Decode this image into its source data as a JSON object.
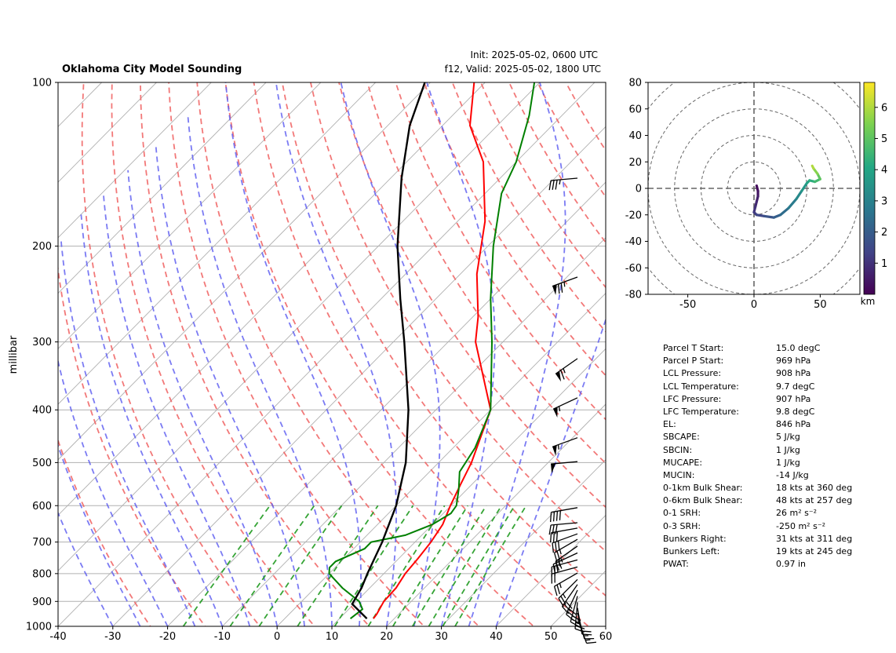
{
  "header": {
    "title": "Oklahoma City Model Sounding",
    "init": "Init: 2025-05-02, 0600 UTC",
    "valid": "f12, Valid: 2025-05-02, 1800 UTC"
  },
  "chart_data": [
    {
      "type": "line",
      "subtype": "skew-t log-p",
      "title": "Oklahoma City Model Sounding",
      "xlabel": "",
      "ylabel": "millibar",
      "xlim": [
        -40,
        60
      ],
      "ylim": [
        1000,
        100
      ],
      "y_scale": "log",
      "x_ticks": [
        -40,
        -30,
        -20,
        -10,
        0,
        10,
        20,
        30,
        40,
        50,
        60
      ],
      "y_ticks": [
        1000,
        900,
        800,
        700,
        600,
        500,
        400,
        300,
        200,
        100
      ],
      "grid": true,
      "series": [
        {
          "role": "temperature",
          "color": "#ff0000",
          "points": [
            [
              968,
              16.2
            ],
            [
              950,
              16.0
            ],
            [
              900,
              15.0
            ],
            [
              850,
              14.8
            ],
            [
              800,
              13.9
            ],
            [
              750,
              13.5
            ],
            [
              700,
              12.9
            ],
            [
              650,
              11.9
            ],
            [
              600,
              9.9
            ],
            [
              550,
              8.0
            ],
            [
              500,
              6.0
            ],
            [
              400,
              0.0
            ],
            [
              300,
              -15.0
            ],
            [
              270,
              -19.0
            ],
            [
              225,
              -27.0
            ],
            [
              180,
              -35.0
            ],
            [
              140,
              -46.0
            ],
            [
              120,
              -55.0
            ],
            [
              100,
              -62.0
            ]
          ]
        },
        {
          "role": "dewpoint",
          "color": "#008000",
          "points": [
            [
              968,
              12.0
            ],
            [
              930,
              12.5
            ],
            [
              900,
              10.5
            ],
            [
              850,
              5.0
            ],
            [
              800,
              0.0
            ],
            [
              780,
              -1.0
            ],
            [
              760,
              -1.0
            ],
            [
              720,
              2.0
            ],
            [
              700,
              2.0
            ],
            [
              680,
              7.0
            ],
            [
              650,
              10.0
            ],
            [
              620,
              11.4
            ],
            [
              600,
              11.0
            ],
            [
              560,
              8.5
            ],
            [
              520,
              5.5
            ],
            [
              470,
              4.0
            ],
            [
              400,
              0.0
            ],
            [
              300,
              -12.0
            ],
            [
              250,
              -20.0
            ],
            [
              200,
              -29.0
            ],
            [
              160,
              -37.0
            ],
            [
              140,
              -40.0
            ],
            [
              115,
              -46.0
            ],
            [
              100,
              -51.0
            ]
          ]
        },
        {
          "role": "parcel",
          "color": "#000000",
          "points": [
            [
              968,
              15.0
            ],
            [
              910,
              9.7
            ],
            [
              850,
              8.5
            ],
            [
              800,
              7.0
            ],
            [
              700,
              4.0
            ],
            [
              600,
              0.0
            ],
            [
              500,
              -6.0
            ],
            [
              400,
              -15.0
            ],
            [
              300,
              -28.0
            ],
            [
              250,
              -36.5
            ],
            [
              200,
              -46.5
            ],
            [
              150,
              -58.0
            ],
            [
              120,
              -66.0
            ],
            [
              100,
              -71.0
            ]
          ]
        }
      ],
      "background_lines": {
        "dry_adiabats_K": [
          250,
          260,
          270,
          280,
          290,
          300,
          310,
          320,
          330,
          340,
          350,
          360,
          370,
          380,
          390,
          400,
          410,
          420,
          430,
          440
        ],
        "moist_adiabats_start_C": [
          -30,
          -25,
          -20,
          -15,
          -10,
          -5,
          0,
          5,
          10,
          15,
          20,
          25,
          30,
          35,
          40
        ],
        "mixing_ratios_gkg": [
          1,
          2,
          3,
          5,
          8,
          12,
          16,
          20,
          24,
          28,
          32
        ]
      },
      "wind_barbs": [
        {
          "p": 966,
          "speed_kt": 15,
          "dir_deg": 160
        },
        {
          "p": 945,
          "speed_kt": 17,
          "dir_deg": 165
        },
        {
          "p": 925,
          "speed_kt": 20,
          "dir_deg": 170
        },
        {
          "p": 903,
          "speed_kt": 25,
          "dir_deg": 185
        },
        {
          "p": 880,
          "speed_kt": 28,
          "dir_deg": 195
        },
        {
          "p": 858,
          "speed_kt": 30,
          "dir_deg": 205
        },
        {
          "p": 838,
          "speed_kt": 30,
          "dir_deg": 215
        },
        {
          "p": 820,
          "speed_kt": 27,
          "dir_deg": 225
        },
        {
          "p": 798,
          "speed_kt": 25,
          "dir_deg": 240
        },
        {
          "p": 778,
          "speed_kt": 22,
          "dir_deg": 255
        },
        {
          "p": 755,
          "speed_kt": 22,
          "dir_deg": 255
        },
        {
          "p": 733,
          "speed_kt": 25,
          "dir_deg": 245
        },
        {
          "p": 712,
          "speed_kt": 25,
          "dir_deg": 235
        },
        {
          "p": 692,
          "speed_kt": 27,
          "dir_deg": 240
        },
        {
          "p": 676,
          "speed_kt": 30,
          "dir_deg": 250
        },
        {
          "p": 660,
          "speed_kt": 30,
          "dir_deg": 260
        },
        {
          "p": 645,
          "speed_kt": 30,
          "dir_deg": 265
        },
        {
          "p": 605,
          "speed_kt": 40,
          "dir_deg": 260
        },
        {
          "p": 498,
          "speed_kt": 50,
          "dir_deg": 265
        },
        {
          "p": 450,
          "speed_kt": 55,
          "dir_deg": 250
        },
        {
          "p": 380,
          "speed_kt": 55,
          "dir_deg": 245
        },
        {
          "p": 322,
          "speed_kt": 65,
          "dir_deg": 235
        },
        {
          "p": 228,
          "speed_kt": 75,
          "dir_deg": 250
        },
        {
          "p": 150,
          "speed_kt": 35,
          "dir_deg": 265
        }
      ]
    },
    {
      "type": "line",
      "subtype": "hodograph",
      "xlim": [
        -80,
        80
      ],
      "ylim": [
        -80,
        80
      ],
      "x_ticks": [
        -50,
        0,
        50
      ],
      "y_ticks": [
        -80,
        -60,
        -40,
        -20,
        0,
        20,
        40,
        60,
        80
      ],
      "rings": [
        20,
        40,
        60,
        80,
        100
      ],
      "colorbar": {
        "label": "km",
        "ticks": [
          1,
          2,
          3,
          4,
          5,
          6
        ],
        "range": [
          0,
          6.8
        ],
        "colormap": [
          "#440154",
          "#414487",
          "#2a788e",
          "#22a884",
          "#7ad151",
          "#fde725"
        ]
      },
      "points": [
        {
          "u": 2,
          "v": 2,
          "h": 0.1
        },
        {
          "u": 3,
          "v": -2,
          "h": 0.3
        },
        {
          "u": 3,
          "v": -6,
          "h": 0.5
        },
        {
          "u": 2,
          "v": -10,
          "h": 0.7
        },
        {
          "u": 1,
          "v": -14,
          "h": 0.9
        },
        {
          "u": 0,
          "v": -18,
          "h": 1.1
        },
        {
          "u": 2,
          "v": -20,
          "h": 1.3
        },
        {
          "u": 8,
          "v": -21,
          "h": 1.6
        },
        {
          "u": 15,
          "v": -22,
          "h": 1.9
        },
        {
          "u": 20,
          "v": -20,
          "h": 2.2
        },
        {
          "u": 26,
          "v": -15,
          "h": 2.6
        },
        {
          "u": 32,
          "v": -8,
          "h": 3.0
        },
        {
          "u": 36,
          "v": -2,
          "h": 3.4
        },
        {
          "u": 40,
          "v": 4,
          "h": 3.8
        },
        {
          "u": 42,
          "v": 6,
          "h": 4.1
        },
        {
          "u": 46,
          "v": 5,
          "h": 4.4
        },
        {
          "u": 50,
          "v": 7,
          "h": 4.8
        },
        {
          "u": 48,
          "v": 11,
          "h": 5.3
        },
        {
          "u": 45,
          "v": 15,
          "h": 5.8
        },
        {
          "u": 44,
          "v": 17,
          "h": 6.2
        }
      ]
    }
  ],
  "parameters": [
    {
      "label": "Parcel T Start:",
      "value": "15.0 degC"
    },
    {
      "label": "Parcel P Start:",
      "value": "969 hPa"
    },
    {
      "label": "LCL Pressure:",
      "value": "908 hPa"
    },
    {
      "label": "LCL Temperature:",
      "value": "9.7 degC"
    },
    {
      "label": "LFC Pressure:",
      "value": "907 hPa"
    },
    {
      "label": "LFC Temperature:",
      "value": "9.8 degC"
    },
    {
      "label": "EL:",
      "value": "846 hPa"
    },
    {
      "label": "SBCAPE:",
      "value": "5 J/kg"
    },
    {
      "label": "SBCIN:",
      "value": "1 J/kg"
    },
    {
      "label": "MUCAPE:",
      "value": "1 J/kg"
    },
    {
      "label": "MUCIN:",
      "value": "-14 J/kg"
    },
    {
      "label": "0-1km Bulk Shear:",
      "value": "18 kts at 360 deg"
    },
    {
      "label": "0-6km Bulk Shear:",
      "value": "48 kts at 257 deg"
    },
    {
      "label": "0-1 SRH:",
      "value": "26 m² s⁻²"
    },
    {
      "label": "0-3 SRH:",
      "value": "-250 m² s⁻²"
    },
    {
      "label": "Bunkers Right:",
      "value": "31 kts at 311 deg"
    },
    {
      "label": "Bunkers Left:",
      "value": "19 kts at 245 deg"
    },
    {
      "label": "PWAT:",
      "value": "0.97 in"
    }
  ]
}
